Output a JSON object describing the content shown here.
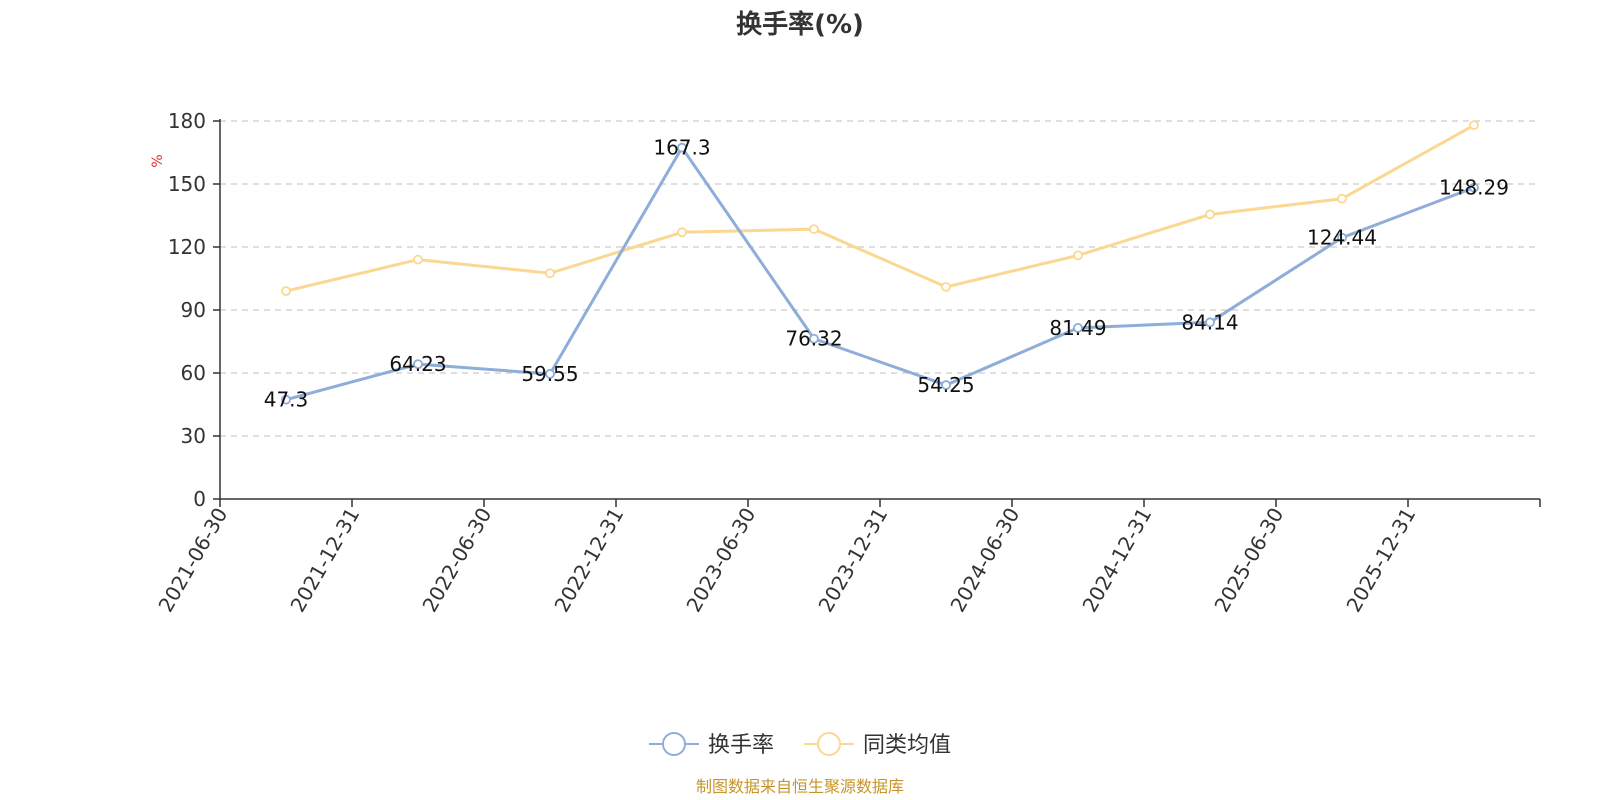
{
  "chart_data": {
    "type": "line",
    "title": "换手率(%)",
    "ylabel": "%",
    "ylim": [
      0,
      180
    ],
    "yticks": [
      0,
      30,
      60,
      90,
      120,
      150,
      180
    ],
    "categories": [
      "2021-06-30",
      "2021-12-31",
      "2022-06-30",
      "2022-12-31",
      "2023-06-30",
      "2023-12-31",
      "2024-06-30",
      "2024-12-31",
      "2025-06-30",
      "2025-12-31"
    ],
    "series": [
      {
        "name": "换手率",
        "color": "#8eadd8",
        "values": [
          47.3,
          64.23,
          59.55,
          167.3,
          76.32,
          54.25,
          81.49,
          84.14,
          124.44,
          148.29
        ],
        "labels": [
          "47.3",
          "64.23",
          "59.55",
          "167.3",
          "76.32",
          "54.25",
          "81.49",
          "84.14",
          "124.44",
          "148.29"
        ]
      },
      {
        "name": "同类均值",
        "color": "#fad891",
        "values": [
          99,
          114,
          107.5,
          127,
          128.5,
          101,
          116,
          135.5,
          143,
          178
        ]
      }
    ],
    "grid": true,
    "legend_position": "bottom",
    "source": "制图数据来自恒生聚源数据库"
  }
}
